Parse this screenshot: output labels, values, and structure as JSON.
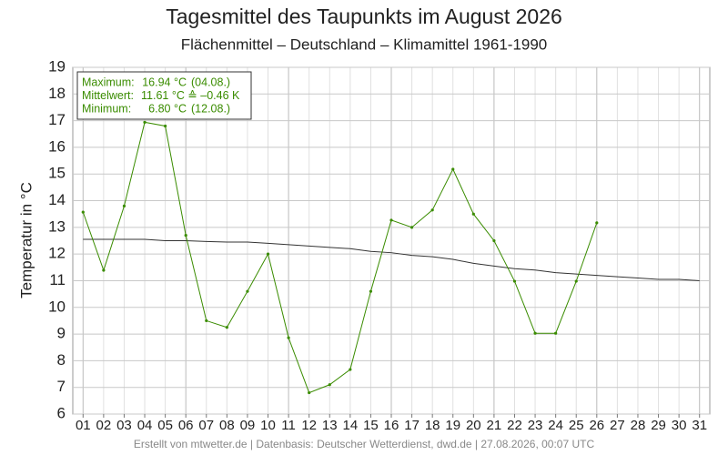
{
  "chart_data": {
    "type": "line",
    "title": "Tagesmittel des Taupunkts im August 2026",
    "subtitle": "Flächenmittel – Deutschland – Klimamittel 1961-1990",
    "y_label": "Temperatur in °C",
    "footer": "Erstellt von mtwetter.de | Datenbasis: Deutscher Wetterdienst, dwd.de | 27.08.2026, 00:07 UTC",
    "info": [
      [
        "Maximum:",
        "16.94 °C",
        "(04.08.)"
      ],
      [
        "Mittelwert:",
        "11.61 °C ≙ –0.46 K",
        ""
      ],
      [
        "Minimum:",
        "6.80 °C",
        "(12.08.)"
      ]
    ],
    "categories": [
      "01",
      "02",
      "03",
      "04",
      "05",
      "06",
      "07",
      "08",
      "09",
      "10",
      "11",
      "12",
      "13",
      "14",
      "15",
      "16",
      "17",
      "18",
      "19",
      "20",
      "21",
      "22",
      "23",
      "24",
      "25",
      "26",
      "27",
      "28",
      "29",
      "30",
      "31"
    ],
    "series": [
      {
        "color": "#333333",
        "markers": false,
        "values": [
          12.55,
          12.55,
          12.55,
          12.55,
          12.5,
          12.5,
          12.47,
          12.45,
          12.45,
          12.4,
          12.35,
          12.3,
          12.25,
          12.2,
          12.1,
          12.05,
          11.95,
          11.9,
          11.8,
          11.65,
          11.55,
          11.45,
          11.4,
          11.3,
          11.25,
          11.2,
          11.15,
          11.1,
          11.05,
          11.05,
          11.0
        ]
      },
      {
        "color": "#3a8c00",
        "markers": true,
        "values": [
          13.57,
          11.39,
          13.8,
          16.94,
          16.8,
          12.7,
          9.5,
          9.25,
          10.6,
          12.0,
          8.86,
          6.8,
          7.1,
          7.67,
          10.6,
          13.27,
          13.0,
          13.65,
          15.18,
          13.5,
          12.5,
          10.98,
          9.03,
          9.03,
          10.98,
          13.17,
          null,
          null,
          null,
          null,
          null
        ]
      }
    ],
    "ylim": [
      6,
      19
    ],
    "yticks": [
      6,
      7,
      8,
      9,
      10,
      11,
      12,
      13,
      14,
      15,
      16,
      17,
      18,
      19
    ],
    "grid": true
  }
}
